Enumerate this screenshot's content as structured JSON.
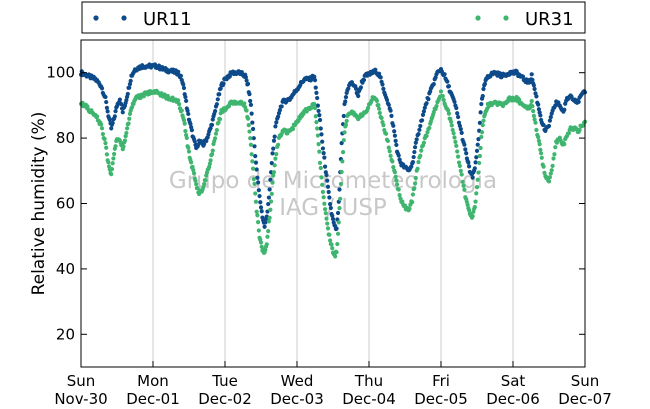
{
  "chart_data": {
    "type": "scatter",
    "title": "",
    "xlabel": "",
    "ylabel": "Relative humidity (%)",
    "ylim": [
      10,
      110
    ],
    "yticks": [
      20,
      40,
      60,
      80,
      100
    ],
    "xlim": [
      0,
      7
    ],
    "xticks": [
      {
        "x": 0,
        "day": "Sun",
        "date": "Nov-30"
      },
      {
        "x": 1,
        "day": "Mon",
        "date": "Dec-01"
      },
      {
        "x": 2,
        "day": "Tue",
        "date": "Dec-02"
      },
      {
        "x": 3,
        "day": "Wed",
        "date": "Dec-03"
      },
      {
        "x": 4,
        "day": "Thu",
        "date": "Dec-04"
      },
      {
        "x": 5,
        "day": "Fri",
        "date": "Dec-05"
      },
      {
        "x": 6,
        "day": "Sat",
        "date": "Dec-06"
      },
      {
        "x": 7,
        "day": "Sun",
        "date": "Dec-07"
      }
    ],
    "grid": "vertical",
    "legend": "top",
    "watermark": [
      "Grupo de Micrometeorologia",
      "IAG / USP"
    ],
    "series": [
      {
        "name": "UR11",
        "color": "#0d4a8a",
        "points": [
          [
            0.0,
            100
          ],
          [
            0.1,
            99
          ],
          [
            0.2,
            98
          ],
          [
            0.28,
            96
          ],
          [
            0.34,
            92
          ],
          [
            0.38,
            87
          ],
          [
            0.42,
            83
          ],
          [
            0.46,
            86
          ],
          [
            0.5,
            90
          ],
          [
            0.54,
            92
          ],
          [
            0.58,
            88
          ],
          [
            0.62,
            91
          ],
          [
            0.66,
            95
          ],
          [
            0.7,
            99
          ],
          [
            0.75,
            101
          ],
          [
            0.85,
            102
          ],
          [
            0.95,
            102
          ],
          [
            1.05,
            102
          ],
          [
            1.15,
            101
          ],
          [
            1.25,
            100.5
          ],
          [
            1.35,
            100
          ],
          [
            1.4,
            98
          ],
          [
            1.44,
            94
          ],
          [
            1.48,
            88
          ],
          [
            1.52,
            84
          ],
          [
            1.56,
            80
          ],
          [
            1.6,
            77
          ],
          [
            1.64,
            79
          ],
          [
            1.7,
            78
          ],
          [
            1.75,
            80
          ],
          [
            1.8,
            83
          ],
          [
            1.85,
            87
          ],
          [
            1.9,
            92
          ],
          [
            1.95,
            96
          ],
          [
            2.0,
            98
          ],
          [
            2.1,
            100
          ],
          [
            2.2,
            100
          ],
          [
            2.28,
            99
          ],
          [
            2.32,
            96
          ],
          [
            2.36,
            90
          ],
          [
            2.4,
            80
          ],
          [
            2.44,
            70
          ],
          [
            2.48,
            62
          ],
          [
            2.52,
            56
          ],
          [
            2.55,
            53
          ],
          [
            2.58,
            56
          ],
          [
            2.62,
            64
          ],
          [
            2.66,
            75
          ],
          [
            2.7,
            83
          ],
          [
            2.75,
            88
          ],
          [
            2.8,
            91
          ],
          [
            2.9,
            92
          ],
          [
            3.0,
            95
          ],
          [
            3.1,
            98
          ],
          [
            3.18,
            98
          ],
          [
            3.24,
            99
          ],
          [
            3.28,
            92
          ],
          [
            3.32,
            85
          ],
          [
            3.36,
            77
          ],
          [
            3.4,
            70
          ],
          [
            3.44,
            63
          ],
          [
            3.48,
            57
          ],
          [
            3.52,
            53
          ],
          [
            3.55,
            52
          ],
          [
            3.58,
            60
          ],
          [
            3.62,
            78
          ],
          [
            3.66,
            90
          ],
          [
            3.7,
            95
          ],
          [
            3.75,
            97
          ],
          [
            3.8,
            96
          ],
          [
            3.85,
            93
          ],
          [
            3.9,
            97
          ],
          [
            3.95,
            99
          ],
          [
            4.0,
            99.5
          ],
          [
            4.05,
            100
          ],
          [
            4.1,
            100.5
          ],
          [
            4.15,
            99
          ],
          [
            4.2,
            95
          ],
          [
            4.25,
            92
          ],
          [
            4.3,
            88
          ],
          [
            4.35,
            82
          ],
          [
            4.4,
            75
          ],
          [
            4.45,
            72
          ],
          [
            4.5,
            71
          ],
          [
            4.55,
            70
          ],
          [
            4.6,
            72
          ],
          [
            4.65,
            78
          ],
          [
            4.7,
            83
          ],
          [
            4.75,
            87
          ],
          [
            4.8,
            91
          ],
          [
            4.85,
            94
          ],
          [
            4.9,
            97
          ],
          [
            4.95,
            100
          ],
          [
            5.0,
            101
          ],
          [
            5.05,
            99
          ],
          [
            5.1,
            96
          ],
          [
            5.15,
            93
          ],
          [
            5.2,
            90
          ],
          [
            5.25,
            85
          ],
          [
            5.3,
            80
          ],
          [
            5.35,
            75
          ],
          [
            5.4,
            70
          ],
          [
            5.44,
            68
          ],
          [
            5.48,
            72
          ],
          [
            5.52,
            80
          ],
          [
            5.56,
            90
          ],
          [
            5.6,
            96
          ],
          [
            5.65,
            99
          ],
          [
            5.75,
            100
          ],
          [
            5.85,
            99
          ],
          [
            5.95,
            100
          ],
          [
            6.05,
            100
          ],
          [
            6.15,
            98
          ],
          [
            6.22,
            97
          ],
          [
            6.26,
            99
          ],
          [
            6.3,
            95
          ],
          [
            6.35,
            90
          ],
          [
            6.4,
            85
          ],
          [
            6.45,
            82
          ],
          [
            6.5,
            84
          ],
          [
            6.55,
            88
          ],
          [
            6.6,
            91
          ],
          [
            6.65,
            90
          ],
          [
            6.7,
            88
          ],
          [
            6.75,
            92
          ],
          [
            6.8,
            93
          ],
          [
            6.85,
            92
          ],
          [
            6.9,
            91
          ],
          [
            6.95,
            93
          ],
          [
            7.0,
            94
          ]
        ]
      },
      {
        "name": "UR31",
        "color": "#3fb56f",
        "points": [
          [
            0.0,
            91
          ],
          [
            0.1,
            89
          ],
          [
            0.2,
            87
          ],
          [
            0.28,
            84
          ],
          [
            0.34,
            78
          ],
          [
            0.38,
            72
          ],
          [
            0.42,
            69
          ],
          [
            0.46,
            75
          ],
          [
            0.5,
            80
          ],
          [
            0.54,
            79
          ],
          [
            0.58,
            77
          ],
          [
            0.62,
            80
          ],
          [
            0.66,
            85
          ],
          [
            0.7,
            89
          ],
          [
            0.75,
            92
          ],
          [
            0.85,
            93
          ],
          [
            0.95,
            94
          ],
          [
            1.05,
            94
          ],
          [
            1.15,
            93
          ],
          [
            1.25,
            92
          ],
          [
            1.35,
            91
          ],
          [
            1.4,
            88
          ],
          [
            1.44,
            84
          ],
          [
            1.48,
            78
          ],
          [
            1.52,
            73
          ],
          [
            1.56,
            70
          ],
          [
            1.6,
            66
          ],
          [
            1.64,
            63
          ],
          [
            1.7,
            65
          ],
          [
            1.75,
            69
          ],
          [
            1.8,
            73
          ],
          [
            1.85,
            79
          ],
          [
            1.9,
            84
          ],
          [
            1.95,
            88
          ],
          [
            2.0,
            89
          ],
          [
            2.1,
            91
          ],
          [
            2.2,
            91
          ],
          [
            2.28,
            90
          ],
          [
            2.32,
            86
          ],
          [
            2.36,
            78
          ],
          [
            2.4,
            68
          ],
          [
            2.44,
            58
          ],
          [
            2.48,
            50
          ],
          [
            2.52,
            46
          ],
          [
            2.55,
            45
          ],
          [
            2.58,
            48
          ],
          [
            2.62,
            56
          ],
          [
            2.66,
            66
          ],
          [
            2.7,
            74
          ],
          [
            2.75,
            80
          ],
          [
            2.8,
            82
          ],
          [
            2.9,
            82
          ],
          [
            3.0,
            85
          ],
          [
            3.1,
            88
          ],
          [
            3.18,
            89
          ],
          [
            3.24,
            91
          ],
          [
            3.28,
            83
          ],
          [
            3.32,
            73
          ],
          [
            3.36,
            64
          ],
          [
            3.4,
            57
          ],
          [
            3.44,
            51
          ],
          [
            3.48,
            47
          ],
          [
            3.52,
            44
          ],
          [
            3.55,
            45
          ],
          [
            3.58,
            54
          ],
          [
            3.62,
            70
          ],
          [
            3.66,
            82
          ],
          [
            3.7,
            87
          ],
          [
            3.75,
            88
          ],
          [
            3.8,
            87
          ],
          [
            3.85,
            86
          ],
          [
            3.9,
            87
          ],
          [
            3.95,
            88
          ],
          [
            4.0,
            90
          ],
          [
            4.05,
            92
          ],
          [
            4.1,
            92
          ],
          [
            4.15,
            88
          ],
          [
            4.2,
            84
          ],
          [
            4.25,
            80
          ],
          [
            4.3,
            75
          ],
          [
            4.35,
            70
          ],
          [
            4.4,
            65
          ],
          [
            4.45,
            61
          ],
          [
            4.5,
            59
          ],
          [
            4.55,
            58
          ],
          [
            4.6,
            61
          ],
          [
            4.65,
            68
          ],
          [
            4.7,
            74
          ],
          [
            4.75,
            78
          ],
          [
            4.8,
            81
          ],
          [
            4.85,
            84
          ],
          [
            4.9,
            88
          ],
          [
            4.95,
            91
          ],
          [
            5.0,
            94
          ],
          [
            5.05,
            91
          ],
          [
            5.1,
            88
          ],
          [
            5.15,
            84
          ],
          [
            5.2,
            79
          ],
          [
            5.25,
            73
          ],
          [
            5.3,
            67
          ],
          [
            5.35,
            61
          ],
          [
            5.4,
            57
          ],
          [
            5.44,
            56
          ],
          [
            5.48,
            60
          ],
          [
            5.52,
            70
          ],
          [
            5.56,
            80
          ],
          [
            5.6,
            87
          ],
          [
            5.65,
            90
          ],
          [
            5.75,
            91
          ],
          [
            5.85,
            90
          ],
          [
            5.95,
            92
          ],
          [
            6.05,
            92
          ],
          [
            6.15,
            90
          ],
          [
            6.22,
            89
          ],
          [
            6.26,
            91
          ],
          [
            6.3,
            86
          ],
          [
            6.35,
            80
          ],
          [
            6.4,
            74
          ],
          [
            6.45,
            68
          ],
          [
            6.5,
            67
          ],
          [
            6.55,
            72
          ],
          [
            6.6,
            79
          ],
          [
            6.65,
            80
          ],
          [
            6.7,
            78
          ],
          [
            6.75,
            81
          ],
          [
            6.8,
            83
          ],
          [
            6.85,
            83
          ],
          [
            6.9,
            82
          ],
          [
            6.95,
            84
          ],
          [
            7.0,
            85
          ]
        ]
      }
    ]
  }
}
